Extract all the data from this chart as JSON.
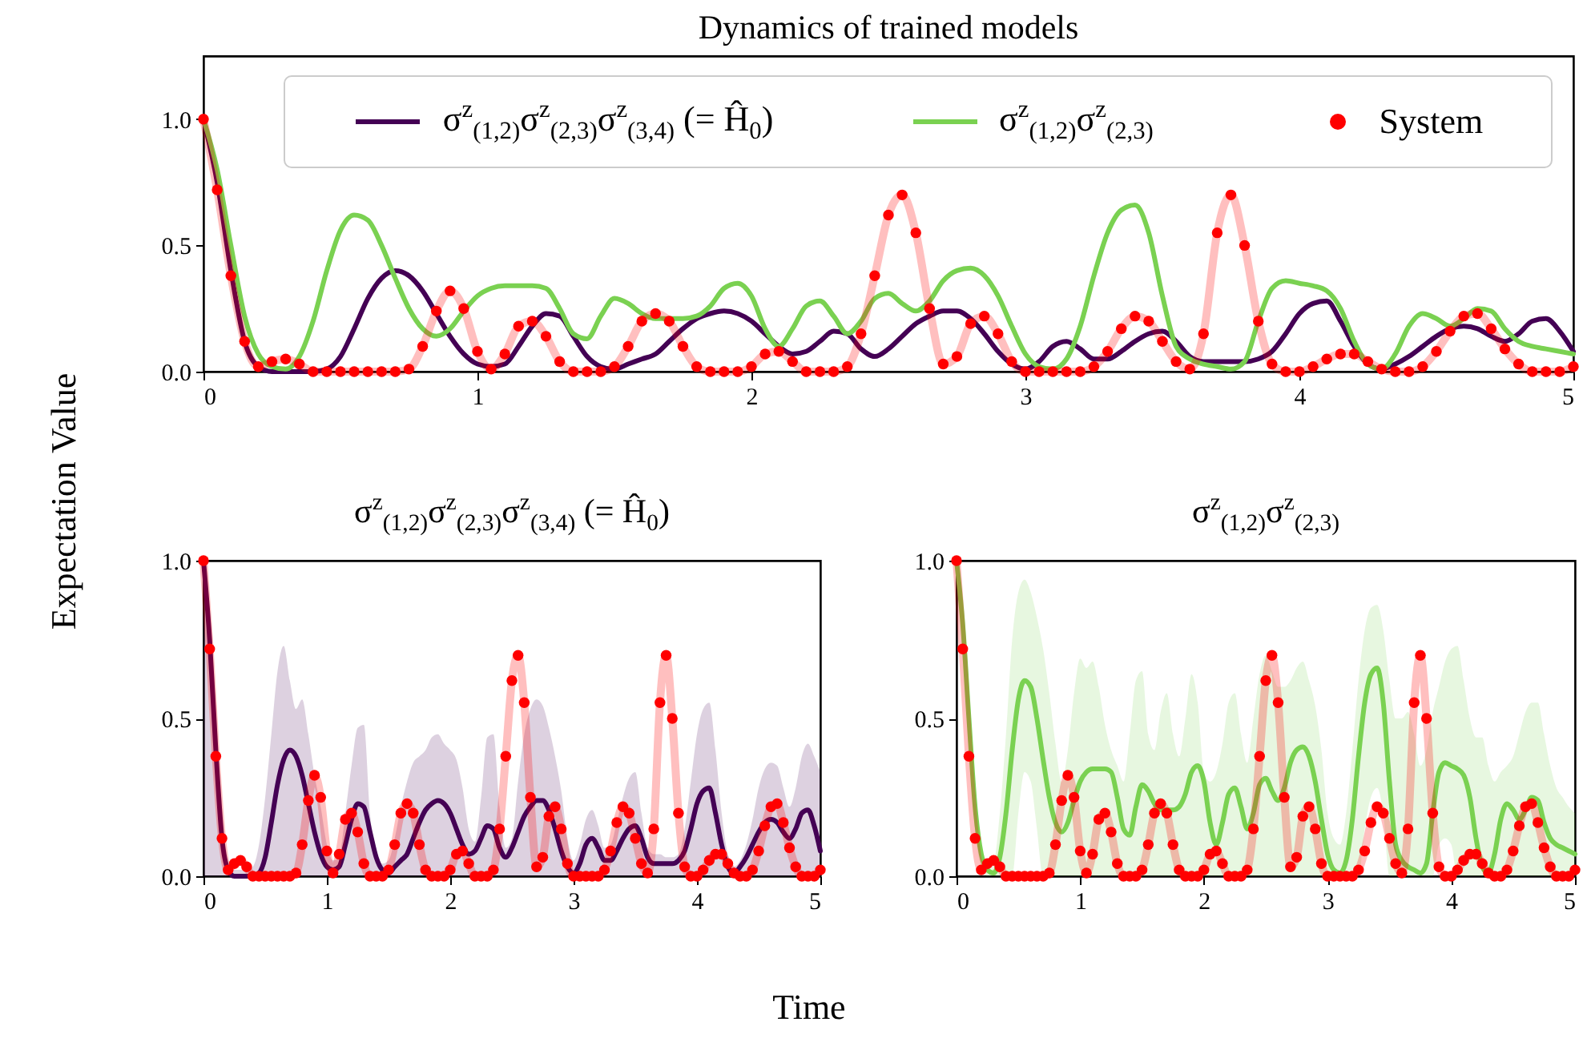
{
  "chart_data": [
    {
      "type": "line",
      "title": "Dynamics of trained models",
      "xlabel": "Time",
      "ylabel": "Expectation Value",
      "legend": "top",
      "xlim": [
        0,
        5
      ],
      "xticks": [
        0,
        1,
        2,
        3,
        4,
        5
      ],
      "ylim": [
        0,
        1.25
      ],
      "yticks": [
        {
          "value": 0,
          "label": "0.0"
        },
        {
          "value": 0.5,
          "label": "0.5"
        },
        {
          "value": 1,
          "label": "1.0"
        }
      ],
      "x": [
        0,
        0.05,
        0.1,
        0.15,
        0.2,
        0.25,
        0.3,
        0.35,
        0.4,
        0.45,
        0.5,
        0.55,
        0.6,
        0.65,
        0.7,
        0.75,
        0.8,
        0.85,
        0.9,
        0.95,
        1,
        1.05,
        1.1,
        1.15,
        1.2,
        1.25,
        1.3,
        1.35,
        1.4,
        1.45,
        1.5,
        1.55,
        1.6,
        1.65,
        1.7,
        1.75,
        1.8,
        1.85,
        1.9,
        1.95,
        2,
        2.05,
        2.1,
        2.15,
        2.2,
        2.25,
        2.3,
        2.35,
        2.4,
        2.45,
        2.5,
        2.55,
        2.6,
        2.65,
        2.7,
        2.75,
        2.8,
        2.85,
        2.9,
        2.95,
        3,
        3.05,
        3.1,
        3.15,
        3.2,
        3.25,
        3.3,
        3.35,
        3.4,
        3.45,
        3.5,
        3.55,
        3.6,
        3.65,
        3.7,
        3.75,
        3.8,
        3.85,
        3.9,
        3.95,
        4,
        4.05,
        4.1,
        4.15,
        4.2,
        4.25,
        4.3,
        4.35,
        4.4,
        4.45,
        4.5,
        4.55,
        4.6,
        4.65,
        4.7,
        4.75,
        4.8,
        4.85,
        4.9,
        4.95,
        5
      ],
      "series": [
        {
          "name": "σ$^{z}$$_{(1,2)}$σ$^{z}$$_{(2,3)}$σ$^{z}$$_{(3,4)}$ (= Ĥ$_{0}$)",
          "color": "#440154",
          "values": [
            1,
            0.75,
            0.4,
            0.12,
            0.02,
            0,
            0,
            0,
            0,
            0.01,
            0.06,
            0.17,
            0.29,
            0.37,
            0.4,
            0.38,
            0.32,
            0.23,
            0.14,
            0.07,
            0.03,
            0.02,
            0.03,
            0.1,
            0.18,
            0.23,
            0.22,
            0.14,
            0.06,
            0.02,
            0.01,
            0.03,
            0.05,
            0.07,
            0.12,
            0.17,
            0.21,
            0.23,
            0.24,
            0.23,
            0.2,
            0.15,
            0.1,
            0.07,
            0.08,
            0.12,
            0.16,
            0.15,
            0.09,
            0.06,
            0.09,
            0.14,
            0.19,
            0.22,
            0.24,
            0.24,
            0.21,
            0.15,
            0.08,
            0.03,
            0.01,
            0.04,
            0.1,
            0.12,
            0.09,
            0.05,
            0.05,
            0.08,
            0.12,
            0.15,
            0.16,
            0.12,
            0.06,
            0.04,
            0.04,
            0.04,
            0.04,
            0.05,
            0.08,
            0.15,
            0.23,
            0.27,
            0.28,
            0.2,
            0.1,
            0.03,
            0.01,
            0.03,
            0.06,
            0.1,
            0.14,
            0.17,
            0.18,
            0.17,
            0.14,
            0.12,
            0.15,
            0.2,
            0.21,
            0.16,
            0.08
          ]
        },
        {
          "name": "σ$^{z}$$_{(1,2)}$σ$^{z}$$_{(2,3)}$",
          "color": "#7ad151",
          "values": [
            1,
            0.8,
            0.5,
            0.22,
            0.07,
            0.02,
            0.01,
            0.06,
            0.2,
            0.4,
            0.56,
            0.62,
            0.6,
            0.5,
            0.37,
            0.25,
            0.17,
            0.14,
            0.17,
            0.24,
            0.3,
            0.33,
            0.34,
            0.34,
            0.34,
            0.33,
            0.25,
            0.15,
            0.13,
            0.22,
            0.29,
            0.27,
            0.23,
            0.21,
            0.21,
            0.21,
            0.22,
            0.26,
            0.33,
            0.35,
            0.3,
            0.17,
            0.1,
            0.17,
            0.26,
            0.28,
            0.22,
            0.15,
            0.2,
            0.29,
            0.31,
            0.27,
            0.24,
            0.28,
            0.36,
            0.4,
            0.41,
            0.38,
            0.3,
            0.18,
            0.07,
            0.02,
            0.01,
            0.05,
            0.18,
            0.38,
            0.55,
            0.64,
            0.66,
            0.55,
            0.3,
            0.1,
            0.05,
            0.03,
            0.02,
            0.01,
            0.04,
            0.2,
            0.33,
            0.36,
            0.35,
            0.34,
            0.32,
            0.25,
            0.12,
            0.03,
            0.01,
            0.07,
            0.18,
            0.23,
            0.21,
            0.18,
            0.21,
            0.25,
            0.24,
            0.17,
            0.12,
            0.1,
            0.09,
            0.08,
            0.07
          ]
        },
        {
          "name": "System",
          "type": "line",
          "marker": "circle",
          "color": "#ff0000",
          "values": [
            1,
            0.72,
            0.38,
            0.12,
            0.02,
            0.04,
            0.05,
            0.03,
            0,
            0,
            0,
            0,
            0,
            0,
            0,
            0.01,
            0.1,
            0.24,
            0.32,
            0.25,
            0.08,
            0.01,
            0.07,
            0.18,
            0.2,
            0.14,
            0.04,
            0,
            0,
            0,
            0.02,
            0.1,
            0.2,
            0.23,
            0.2,
            0.1,
            0.02,
            0,
            0,
            0,
            0.02,
            0.07,
            0.08,
            0.04,
            0,
            0,
            0,
            0.02,
            0.15,
            0.38,
            0.62,
            0.7,
            0.55,
            0.25,
            0.03,
            0.06,
            0.19,
            0.22,
            0.15,
            0.04,
            0,
            0,
            0,
            0,
            0,
            0.02,
            0.08,
            0.17,
            0.22,
            0.2,
            0.12,
            0.04,
            0.01,
            0.15,
            0.55,
            0.7,
            0.5,
            0.2,
            0.03,
            0,
            0,
            0.02,
            0.05,
            0.07,
            0.07,
            0.04,
            0.01,
            0,
            0,
            0.02,
            0.08,
            0.16,
            0.22,
            0.23,
            0.17,
            0.09,
            0.03,
            0,
            0,
            0,
            0.02
          ]
        }
      ]
    },
    {
      "type": "line",
      "title": "σ$^{z}$$_{(1,2)}$σ$^{z}$$_{(2,3)}$σ$^{z}$$_{(3,4)}$ (= Ĥ$_{0}$)",
      "xlim": [
        0,
        5
      ],
      "xticks": [
        0,
        1,
        2,
        3,
        4,
        5
      ],
      "ylim": [
        0,
        1
      ],
      "yticks": [
        {
          "value": 0,
          "label": "0.0"
        },
        {
          "value": 0.5,
          "label": "0.5"
        },
        {
          "value": 1,
          "label": "1.0"
        }
      ],
      "x": [
        0,
        0.05,
        0.1,
        0.15,
        0.2,
        0.25,
        0.3,
        0.35,
        0.4,
        0.45,
        0.5,
        0.55,
        0.6,
        0.65,
        0.7,
        0.75,
        0.8,
        0.85,
        0.9,
        0.95,
        1,
        1.05,
        1.1,
        1.15,
        1.2,
        1.25,
        1.3,
        1.35,
        1.4,
        1.45,
        1.5,
        1.55,
        1.6,
        1.65,
        1.7,
        1.75,
        1.8,
        1.85,
        1.9,
        1.95,
        2,
        2.05,
        2.1,
        2.15,
        2.2,
        2.25,
        2.3,
        2.35,
        2.4,
        2.45,
        2.5,
        2.55,
        2.6,
        2.65,
        2.7,
        2.75,
        2.8,
        2.85,
        2.9,
        2.95,
        3,
        3.05,
        3.1,
        3.15,
        3.2,
        3.25,
        3.3,
        3.35,
        3.4,
        3.45,
        3.5,
        3.55,
        3.6,
        3.65,
        3.7,
        3.75,
        3.8,
        3.85,
        3.9,
        3.95,
        4,
        4.05,
        4.1,
        4.15,
        4.2,
        4.25,
        4.3,
        4.35,
        4.4,
        4.45,
        4.5,
        4.55,
        4.6,
        4.65,
        4.7,
        4.75,
        4.8,
        4.85,
        4.9,
        4.95,
        5
      ],
      "series": [
        {
          "color": "#440154",
          "values": [
            1,
            0.75,
            0.4,
            0.12,
            0.02,
            0,
            0,
            0,
            0,
            0.01,
            0.06,
            0.17,
            0.29,
            0.37,
            0.4,
            0.38,
            0.32,
            0.23,
            0.14,
            0.07,
            0.03,
            0.02,
            0.03,
            0.1,
            0.18,
            0.23,
            0.22,
            0.14,
            0.06,
            0.02,
            0.01,
            0.03,
            0.05,
            0.07,
            0.12,
            0.17,
            0.21,
            0.23,
            0.24,
            0.23,
            0.2,
            0.15,
            0.1,
            0.07,
            0.08,
            0.12,
            0.16,
            0.15,
            0.09,
            0.06,
            0.09,
            0.14,
            0.19,
            0.22,
            0.24,
            0.24,
            0.21,
            0.15,
            0.08,
            0.03,
            0.01,
            0.04,
            0.1,
            0.12,
            0.09,
            0.05,
            0.05,
            0.08,
            0.12,
            0.15,
            0.16,
            0.12,
            0.06,
            0.04,
            0.04,
            0.04,
            0.04,
            0.05,
            0.08,
            0.15,
            0.23,
            0.27,
            0.28,
            0.2,
            0.1,
            0.03,
            0.01,
            0.03,
            0.06,
            0.1,
            0.14,
            0.17,
            0.18,
            0.17,
            0.14,
            0.12,
            0.15,
            0.2,
            0.21,
            0.16,
            0.08
          ],
          "lower": [
            0,
            0,
            0,
            0,
            0,
            0,
            0,
            0,
            0,
            0,
            0,
            0,
            0,
            0,
            0,
            0,
            0,
            0,
            0,
            0,
            0,
            0,
            0,
            0,
            0,
            0,
            0,
            0,
            0,
            0,
            0,
            0,
            0,
            0,
            0,
            0,
            0,
            0,
            0,
            0,
            0,
            0,
            0,
            0,
            0,
            0,
            0,
            0,
            0,
            0,
            0,
            0,
            0,
            0,
            0,
            0,
            0,
            0,
            0,
            0,
            0,
            0,
            0,
            0,
            0,
            0,
            0,
            0,
            0,
            0,
            0,
            0,
            0,
            0,
            0,
            0,
            0,
            0,
            0,
            0,
            0,
            0,
            0,
            0,
            0,
            0,
            0,
            0,
            0,
            0,
            0,
            0,
            0,
            0,
            0,
            0,
            0,
            0,
            0,
            0,
            0
          ],
          "upper": [
            1,
            0.8,
            0.45,
            0.15,
            0.03,
            0.02,
            0.02,
            0.02,
            0.03,
            0.1,
            0.25,
            0.45,
            0.65,
            0.73,
            0.62,
            0.53,
            0.56,
            0.45,
            0.32,
            0.22,
            0.1,
            0.05,
            0.06,
            0.2,
            0.35,
            0.47,
            0.48,
            0.2,
            0.07,
            0.04,
            0.05,
            0.12,
            0.22,
            0.3,
            0.36,
            0.38,
            0.4,
            0.44,
            0.45,
            0.42,
            0.4,
            0.37,
            0.28,
            0.15,
            0.11,
            0.25,
            0.44,
            0.45,
            0.22,
            0.09,
            0.12,
            0.3,
            0.45,
            0.53,
            0.56,
            0.54,
            0.47,
            0.38,
            0.27,
            0.12,
            0.05,
            0.1,
            0.18,
            0.21,
            0.16,
            0.09,
            0.1,
            0.17,
            0.25,
            0.31,
            0.33,
            0.2,
            0.09,
            0.07,
            0.07,
            0.06,
            0.06,
            0.07,
            0.15,
            0.3,
            0.45,
            0.53,
            0.55,
            0.4,
            0.2,
            0.07,
            0.03,
            0.05,
            0.1,
            0.18,
            0.28,
            0.34,
            0.36,
            0.35,
            0.28,
            0.22,
            0.28,
            0.38,
            0.42,
            0.38,
            0.33
          ]
        },
        {
          "type": "line",
          "marker": "circle",
          "color": "#ff0000",
          "values": [
            1,
            0.72,
            0.38,
            0.12,
            0.02,
            0.04,
            0.05,
            0.03,
            0,
            0,
            0,
            0,
            0,
            0,
            0,
            0.01,
            0.1,
            0.24,
            0.32,
            0.25,
            0.08,
            0.01,
            0.07,
            0.18,
            0.2,
            0.14,
            0.04,
            0,
            0,
            0,
            0.02,
            0.1,
            0.2,
            0.23,
            0.2,
            0.1,
            0.02,
            0,
            0,
            0,
            0.02,
            0.07,
            0.08,
            0.04,
            0,
            0,
            0,
            0.02,
            0.15,
            0.38,
            0.62,
            0.7,
            0.55,
            0.25,
            0.03,
            0.06,
            0.19,
            0.22,
            0.15,
            0.04,
            0,
            0,
            0,
            0,
            0,
            0.02,
            0.08,
            0.17,
            0.22,
            0.2,
            0.12,
            0.04,
            0.01,
            0.15,
            0.55,
            0.7,
            0.5,
            0.2,
            0.03,
            0,
            0,
            0.02,
            0.05,
            0.07,
            0.07,
            0.04,
            0.01,
            0,
            0,
            0.02,
            0.08,
            0.16,
            0.22,
            0.23,
            0.17,
            0.09,
            0.03,
            0,
            0,
            0,
            0.02
          ]
        }
      ]
    },
    {
      "type": "line",
      "title": "σ$^{z}$$_{(1,2)}$σ$^{z}$$_{(2,3)}$",
      "xlim": [
        0,
        5
      ],
      "xticks": [
        0,
        1,
        2,
        3,
        4,
        5
      ],
      "ylim": [
        0,
        1
      ],
      "yticks": [
        {
          "value": 0,
          "label": "0.0"
        },
        {
          "value": 0.5,
          "label": "0.5"
        },
        {
          "value": 1,
          "label": "1.0"
        }
      ],
      "x": [
        0,
        0.05,
        0.1,
        0.15,
        0.2,
        0.25,
        0.3,
        0.35,
        0.4,
        0.45,
        0.5,
        0.55,
        0.6,
        0.65,
        0.7,
        0.75,
        0.8,
        0.85,
        0.9,
        0.95,
        1,
        1.05,
        1.1,
        1.15,
        1.2,
        1.25,
        1.3,
        1.35,
        1.4,
        1.45,
        1.5,
        1.55,
        1.6,
        1.65,
        1.7,
        1.75,
        1.8,
        1.85,
        1.9,
        1.95,
        2,
        2.05,
        2.1,
        2.15,
        2.2,
        2.25,
        2.3,
        2.35,
        2.4,
        2.45,
        2.5,
        2.55,
        2.6,
        2.65,
        2.7,
        2.75,
        2.8,
        2.85,
        2.9,
        2.95,
        3,
        3.05,
        3.1,
        3.15,
        3.2,
        3.25,
        3.3,
        3.35,
        3.4,
        3.45,
        3.5,
        3.55,
        3.6,
        3.65,
        3.7,
        3.75,
        3.8,
        3.85,
        3.9,
        3.95,
        4,
        4.05,
        4.1,
        4.15,
        4.2,
        4.25,
        4.3,
        4.35,
        4.4,
        4.45,
        4.5,
        4.55,
        4.6,
        4.65,
        4.7,
        4.75,
        4.8,
        4.85,
        4.9,
        4.95,
        5
      ],
      "series": [
        {
          "color": "#7ad151",
          "values": [
            1,
            0.8,
            0.5,
            0.22,
            0.07,
            0.02,
            0.01,
            0.06,
            0.2,
            0.4,
            0.56,
            0.62,
            0.6,
            0.5,
            0.37,
            0.25,
            0.17,
            0.14,
            0.17,
            0.24,
            0.3,
            0.33,
            0.34,
            0.34,
            0.34,
            0.33,
            0.25,
            0.15,
            0.13,
            0.22,
            0.29,
            0.27,
            0.23,
            0.21,
            0.21,
            0.21,
            0.22,
            0.26,
            0.33,
            0.35,
            0.3,
            0.17,
            0.1,
            0.17,
            0.26,
            0.28,
            0.22,
            0.15,
            0.2,
            0.29,
            0.31,
            0.27,
            0.24,
            0.28,
            0.36,
            0.4,
            0.41,
            0.38,
            0.3,
            0.18,
            0.07,
            0.02,
            0.01,
            0.05,
            0.18,
            0.38,
            0.55,
            0.64,
            0.66,
            0.55,
            0.3,
            0.1,
            0.05,
            0.03,
            0.02,
            0.01,
            0.04,
            0.2,
            0.33,
            0.36,
            0.35,
            0.34,
            0.32,
            0.25,
            0.12,
            0.03,
            0.01,
            0.07,
            0.18,
            0.23,
            0.21,
            0.18,
            0.21,
            0.25,
            0.24,
            0.17,
            0.12,
            0.1,
            0.09,
            0.08,
            0.07
          ],
          "lower": [
            1,
            0.75,
            0.42,
            0.15,
            0.03,
            0,
            0,
            0,
            0,
            0,
            0.2,
            0.33,
            0.3,
            0.15,
            0,
            0,
            0,
            0,
            0,
            0,
            0,
            0,
            0,
            0,
            0,
            0,
            0,
            0,
            0,
            0,
            0,
            0,
            0,
            0,
            0,
            0,
            0,
            0,
            0,
            0,
            0,
            0,
            0,
            0,
            0,
            0,
            0,
            0,
            0,
            0,
            0,
            0,
            0,
            0,
            0,
            0,
            0,
            0,
            0,
            0,
            0,
            0,
            0,
            0,
            0,
            0,
            0.15,
            0.25,
            0.28,
            0.2,
            0,
            0,
            0,
            0,
            0,
            0,
            0,
            0,
            0.1,
            0.12,
            0.1,
            0,
            0,
            0,
            0,
            0,
            0,
            0,
            0,
            0,
            0,
            0,
            0,
            0,
            0,
            0,
            0,
            0,
            0,
            0,
            0
          ],
          "upper": [
            1,
            0.85,
            0.6,
            0.3,
            0.1,
            0.05,
            0.05,
            0.2,
            0.45,
            0.75,
            0.9,
            0.94,
            0.9,
            0.82,
            0.72,
            0.58,
            0.42,
            0.3,
            0.4,
            0.58,
            0.69,
            0.66,
            0.68,
            0.6,
            0.48,
            0.4,
            0.35,
            0.3,
            0.45,
            0.62,
            0.65,
            0.45,
            0.4,
            0.52,
            0.58,
            0.45,
            0.38,
            0.5,
            0.64,
            0.55,
            0.33,
            0.3,
            0.33,
            0.42,
            0.55,
            0.58,
            0.45,
            0.36,
            0.5,
            0.64,
            0.7,
            0.65,
            0.6,
            0.6,
            0.62,
            0.66,
            0.68,
            0.62,
            0.54,
            0.4,
            0.2,
            0.12,
            0.1,
            0.2,
            0.4,
            0.62,
            0.78,
            0.85,
            0.86,
            0.78,
            0.62,
            0.5,
            0.5,
            0.52,
            0.45,
            0.35,
            0.4,
            0.52,
            0.6,
            0.68,
            0.72,
            0.73,
            0.62,
            0.5,
            0.44,
            0.44,
            0.35,
            0.3,
            0.33,
            0.35,
            0.38,
            0.45,
            0.52,
            0.55,
            0.55,
            0.45,
            0.35,
            0.28,
            0.25,
            0.22,
            0.2
          ]
        },
        {
          "type": "line",
          "marker": "circle",
          "color": "#ff0000",
          "values": [
            1,
            0.72,
            0.38,
            0.12,
            0.02,
            0.04,
            0.05,
            0.03,
            0,
            0,
            0,
            0,
            0,
            0,
            0,
            0.01,
            0.1,
            0.24,
            0.32,
            0.25,
            0.08,
            0.01,
            0.07,
            0.18,
            0.2,
            0.14,
            0.04,
            0,
            0,
            0,
            0.02,
            0.1,
            0.2,
            0.23,
            0.2,
            0.1,
            0.02,
            0,
            0,
            0,
            0.02,
            0.07,
            0.08,
            0.04,
            0,
            0,
            0,
            0.02,
            0.15,
            0.38,
            0.62,
            0.7,
            0.55,
            0.25,
            0.03,
            0.06,
            0.19,
            0.22,
            0.15,
            0.04,
            0,
            0,
            0,
            0,
            0,
            0.02,
            0.08,
            0.17,
            0.22,
            0.2,
            0.12,
            0.04,
            0.01,
            0.15,
            0.55,
            0.7,
            0.5,
            0.2,
            0.03,
            0,
            0,
            0.02,
            0.05,
            0.07,
            0.07,
            0.04,
            0.01,
            0,
            0,
            0.02,
            0.08,
            0.16,
            0.22,
            0.23,
            0.17,
            0.09,
            0.03,
            0,
            0,
            0,
            0.02
          ]
        }
      ]
    }
  ]
}
